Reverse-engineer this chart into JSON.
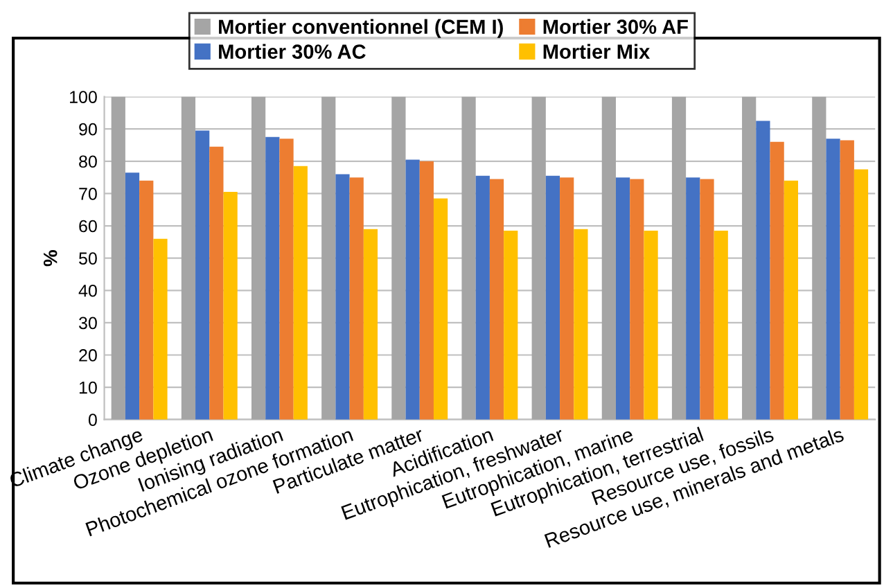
{
  "chart_data": {
    "type": "bar",
    "ylabel": "%",
    "categories": [
      "Climate change",
      "Ozone depletion",
      "Ionising radiation",
      "Photochemical ozone formation",
      "Particulate matter",
      "Acidification",
      "Eutrophication, freshwater",
      "Eutrophication, marine",
      "Eutrophication, terrestrial",
      "Resource use, fossils",
      "Resource use, minerals and metals"
    ],
    "series": [
      {
        "name": "Mortier conventionnel (CEM I)",
        "color": "#a5a5a5",
        "values": [
          100,
          100,
          100,
          100,
          100,
          100,
          100,
          100,
          100,
          100,
          100
        ]
      },
      {
        "name": "Mortier 30% AC",
        "color": "#4472c4",
        "values": [
          76.5,
          89.5,
          87.5,
          76,
          80.5,
          75.5,
          75.5,
          75,
          75,
          92.5,
          87
        ]
      },
      {
        "name": "Mortier 30% AF",
        "color": "#ed7d31",
        "values": [
          74,
          84.5,
          87,
          75,
          80,
          74.5,
          75,
          74.5,
          74.5,
          86,
          86.5
        ]
      },
      {
        "name": "Mortier Mix",
        "color": "#ffc000",
        "values": [
          56,
          70.5,
          78.5,
          59,
          68.5,
          58.5,
          59,
          58.5,
          58.5,
          74,
          77.5
        ]
      }
    ],
    "ylim": [
      0,
      100
    ],
    "yticks": [
      0,
      10,
      20,
      30,
      40,
      50,
      60,
      70,
      80,
      90,
      100
    ],
    "grid": "y",
    "legend": "top"
  }
}
